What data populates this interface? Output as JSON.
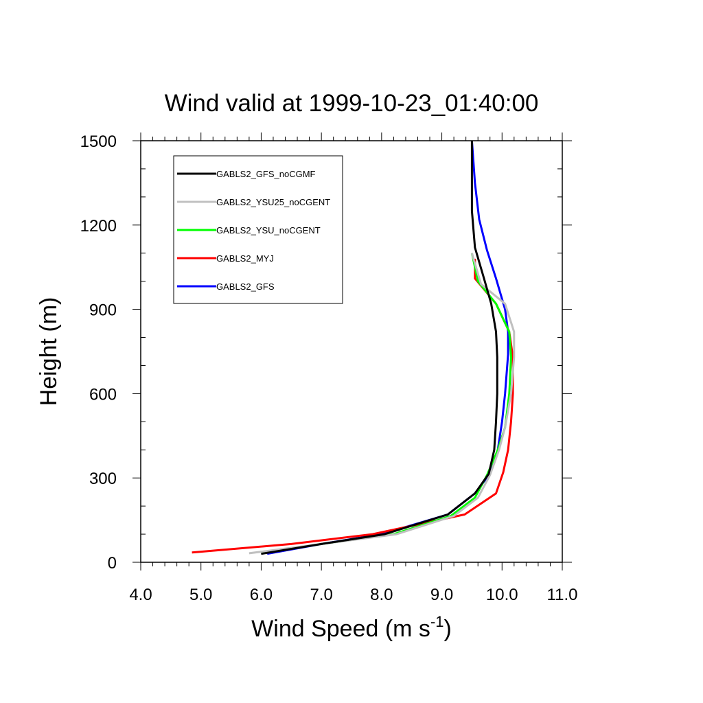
{
  "chart_data": {
    "type": "line",
    "title": "Wind valid at 1999-10-23_01:40:00",
    "xlabel": "Wind Speed (m s",
    "xlabel_superscript": "-1",
    "xlabel_suffix": ")",
    "ylabel": "Height (m)",
    "xlim": [
      4.0,
      11.0
    ],
    "ylim": [
      0,
      1500
    ],
    "x_ticks": [
      4.0,
      5.0,
      6.0,
      7.0,
      8.0,
      9.0,
      10.0,
      11.0
    ],
    "x_tick_labels": [
      "4.0",
      "5.0",
      "6.0",
      "7.0",
      "8.0",
      "9.0",
      "10.0",
      "11.0"
    ],
    "y_ticks": [
      0,
      300,
      600,
      900,
      1200,
      1500
    ],
    "y_tick_labels": [
      "0",
      "300",
      "600",
      "900",
      "1200",
      "1500"
    ],
    "grid": false,
    "legend_position": "top-left",
    "series": [
      {
        "name": "GABLS2_GFS_noCGMF",
        "color": "#000000",
        "points": [
          [
            6.0,
            30
          ],
          [
            7.0,
            65
          ],
          [
            8.05,
            100
          ],
          [
            9.1,
            170
          ],
          [
            9.55,
            245
          ],
          [
            9.78,
            315
          ],
          [
            9.87,
            400
          ],
          [
            9.9,
            500
          ],
          [
            9.92,
            600
          ],
          [
            9.92,
            730
          ],
          [
            9.9,
            820
          ],
          [
            9.82,
            920
          ],
          [
            9.7,
            1010
          ],
          [
            9.55,
            1120
          ],
          [
            9.5,
            1250
          ],
          [
            9.5,
            1500
          ]
        ]
      },
      {
        "name": "GABLS2_YSU25_noCGENT",
        "color": "#c0c0c0",
        "points": [
          [
            5.8,
            32
          ],
          [
            7.0,
            65
          ],
          [
            8.25,
            100
          ],
          [
            9.2,
            165
          ],
          [
            9.6,
            230
          ],
          [
            9.8,
            310
          ],
          [
            9.95,
            400
          ],
          [
            10.05,
            480
          ],
          [
            10.15,
            600
          ],
          [
            10.2,
            730
          ],
          [
            10.2,
            820
          ],
          [
            10.05,
            920
          ],
          [
            9.65,
            990
          ],
          [
            9.5,
            1100
          ]
        ]
      },
      {
        "name": "GABLS2_YSU_noCGENT",
        "color": "#00ff00",
        "points": [
          [
            6.0,
            32
          ],
          [
            7.0,
            65
          ],
          [
            8.2,
            100
          ],
          [
            9.15,
            165
          ],
          [
            9.55,
            230
          ],
          [
            9.75,
            310
          ],
          [
            9.93,
            400
          ],
          [
            10.05,
            480
          ],
          [
            10.12,
            600
          ],
          [
            10.15,
            730
          ],
          [
            10.12,
            820
          ],
          [
            9.9,
            920
          ],
          [
            9.6,
            1000
          ],
          [
            9.5,
            1100
          ]
        ]
      },
      {
        "name": "GABLS2_MYJ",
        "color": "#ff0000",
        "points": [
          [
            4.85,
            35
          ],
          [
            6.5,
            65
          ],
          [
            7.85,
            100
          ],
          [
            9.38,
            170
          ],
          [
            9.9,
            245
          ],
          [
            10.02,
            320
          ],
          [
            10.1,
            400
          ],
          [
            10.15,
            500
          ],
          [
            10.18,
            600
          ],
          [
            10.18,
            730
          ],
          [
            10.12,
            820
          ],
          [
            9.9,
            920
          ],
          [
            9.55,
            1010
          ],
          [
            9.55,
            1080
          ]
        ]
      },
      {
        "name": "GABLS2_GFS",
        "color": "#0000ff",
        "points": [
          [
            6.1,
            30
          ],
          [
            7.0,
            65
          ],
          [
            8.0,
            100
          ],
          [
            9.1,
            170
          ],
          [
            9.55,
            245
          ],
          [
            9.8,
            315
          ],
          [
            9.93,
            400
          ],
          [
            10.0,
            500
          ],
          [
            10.05,
            600
          ],
          [
            10.1,
            740
          ],
          [
            10.1,
            820
          ],
          [
            10.05,
            900
          ],
          [
            9.9,
            1010
          ],
          [
            9.75,
            1110
          ],
          [
            9.62,
            1220
          ],
          [
            9.55,
            1350
          ],
          [
            9.5,
            1500
          ]
        ]
      }
    ]
  }
}
